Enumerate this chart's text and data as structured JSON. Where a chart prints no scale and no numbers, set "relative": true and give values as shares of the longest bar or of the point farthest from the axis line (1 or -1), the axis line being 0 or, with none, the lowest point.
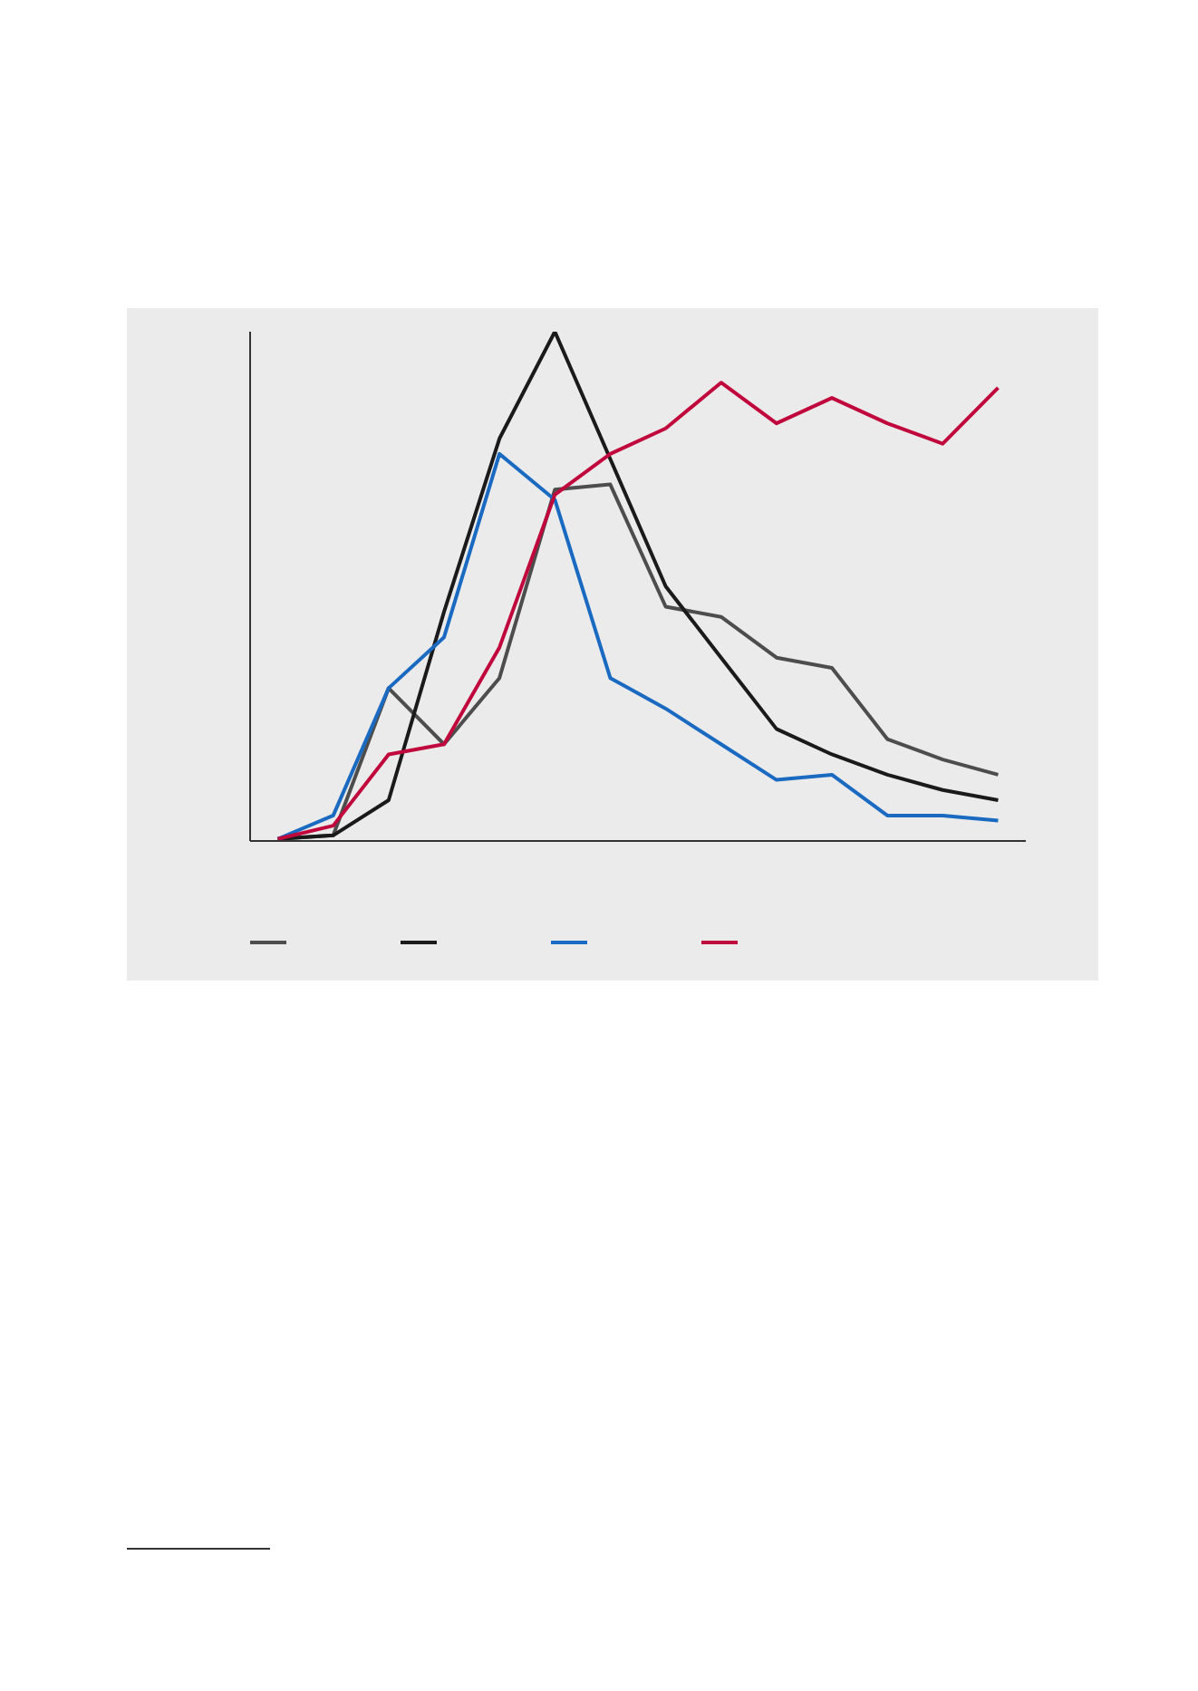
{
  "chart_data": {
    "type": "line",
    "relative": true,
    "categories": [
      null,
      null,
      null,
      null,
      null,
      null,
      null,
      null,
      null,
      null,
      null,
      null,
      null,
      null
    ],
    "grid": false,
    "marker": "none",
    "line_style": "solid",
    "series": [
      {
        "color": "#4d4d4d",
        "values": [
          0.004,
          0.011,
          0.3,
          0.19,
          0.32,
          0.69,
          0.7,
          0.46,
          0.44,
          0.36,
          0.34,
          0.2,
          0.16,
          0.13
        ]
      },
      {
        "color": "#1a1a1a",
        "values": [
          0.004,
          0.011,
          0.08,
          0.45,
          0.79,
          1,
          0.75,
          0.5,
          0.36,
          0.22,
          0.17,
          0.13,
          0.1,
          0.08
        ]
      },
      {
        "color": "#1a6ac2",
        "values": [
          0.004,
          0.05,
          0.3,
          0.4,
          0.76,
          0.67,
          0.32,
          0.26,
          0.19,
          0.12,
          0.13,
          0.05,
          0.05,
          0.04
        ]
      },
      {
        "color": "#c0083c",
        "values": [
          0.004,
          0.03,
          0.17,
          0.19,
          0.38,
          0.68,
          0.76,
          0.81,
          0.9,
          0.82,
          0.87,
          0.82,
          0.78,
          0.89
        ]
      }
    ]
  }
}
